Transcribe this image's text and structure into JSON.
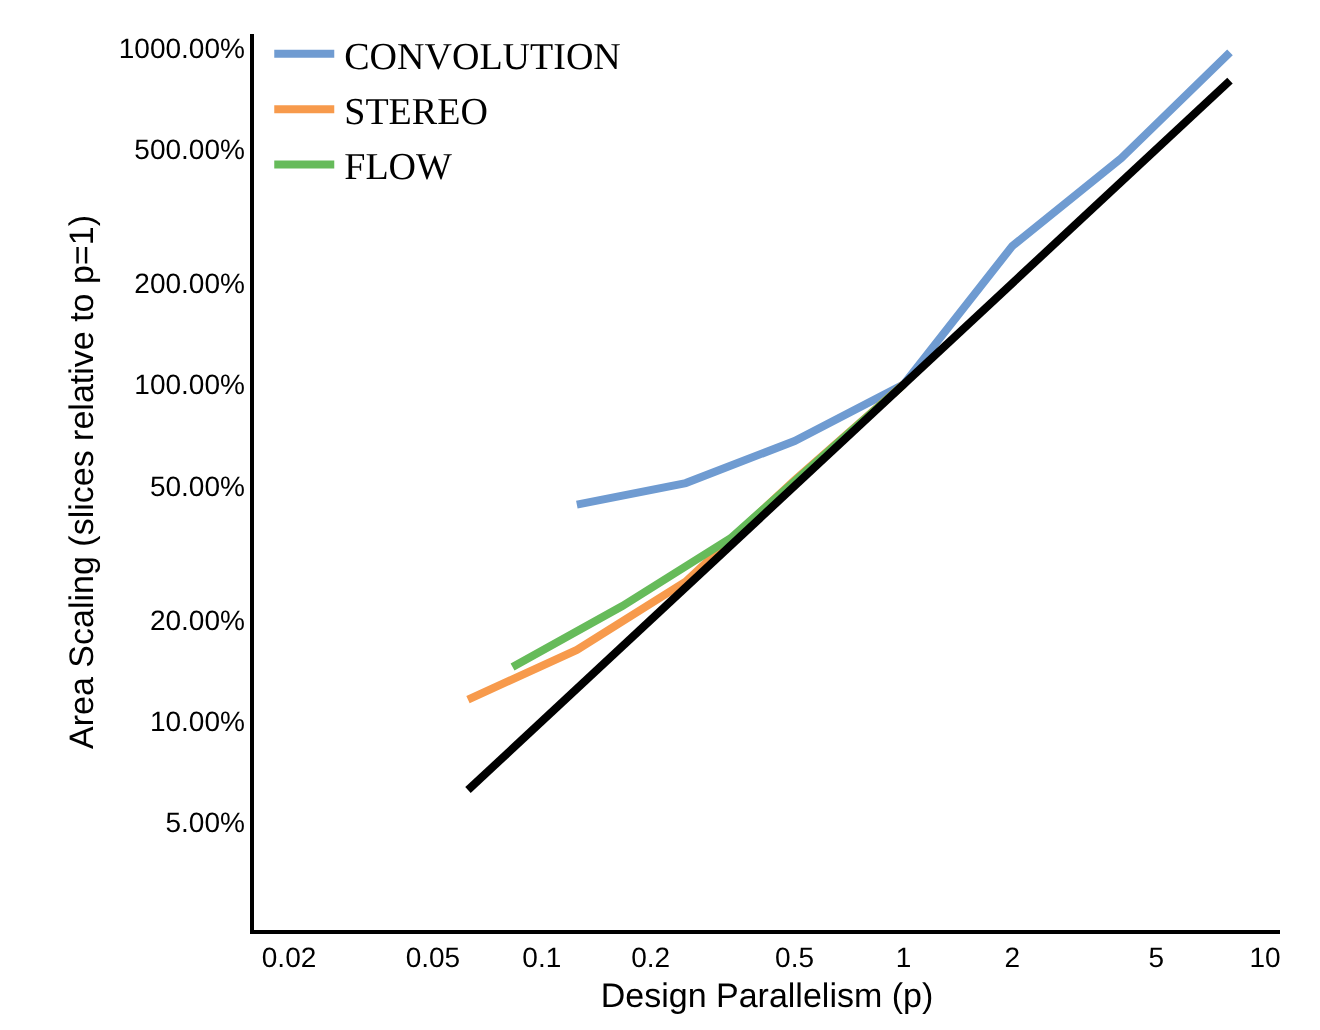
{
  "chart_data": {
    "type": "line",
    "xlabel": "Design Parallelism (p)",
    "ylabel": "Area Scaling (slices relative to p=1)",
    "log": "xy",
    "grid": false,
    "legend": "top left",
    "line_style": "solid",
    "marker": "none",
    "xlim": [
      0.016,
      11
    ],
    "xticks": [
      0.02,
      0.05,
      0.1,
      0.2,
      0.5,
      1,
      2,
      5,
      10
    ],
    "ylim": [
      2.4,
      1100
    ],
    "yticks": [
      {
        "value": 5,
        "label": "5.00%"
      },
      {
        "value": 10,
        "label": "10.00%"
      },
      {
        "value": 20,
        "label": "20.00%"
      },
      {
        "value": 50,
        "label": "50.00%"
      },
      {
        "value": 100,
        "label": "100.00%"
      },
      {
        "value": 200,
        "label": "200.00%"
      },
      {
        "value": 500,
        "label": "500.00%"
      },
      {
        "value": 1000,
        "label": "1000.00%"
      }
    ],
    "series": [
      {
        "name": "CONVOLUTION",
        "color": "#6f9bd1",
        "x": [
          0.125,
          0.25,
          0.5,
          1,
          2,
          4,
          8
        ],
        "values": [
          44,
          51,
          68,
          100,
          258,
          470,
          970
        ]
      },
      {
        "name": "STEREO",
        "color": "#f79a4c",
        "x": [
          0.0625,
          0.125,
          0.25,
          0.5,
          1
        ],
        "values": [
          11.6,
          16.3,
          26,
          52,
          100
        ]
      },
      {
        "name": "FLOW",
        "color": "#66bb5a",
        "x": [
          0.083,
          0.167,
          0.333,
          0.667,
          1
        ],
        "values": [
          14.5,
          22,
          35,
          68,
          100
        ]
      },
      {
        "color": "#000000",
        "x": [
          0.0625,
          8
        ],
        "values": [
          6.25,
          800
        ]
      }
    ]
  }
}
